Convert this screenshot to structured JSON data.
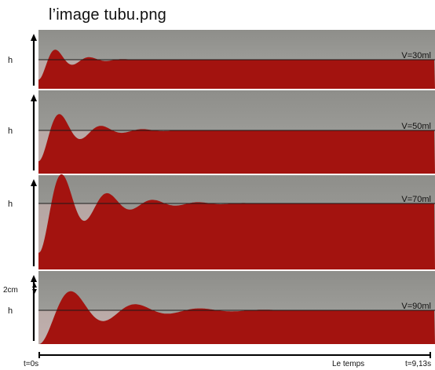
{
  "title": "l’image tubu.png",
  "axis": {
    "height_label": "h",
    "scale_label": "2cm",
    "time_start": "t=0s",
    "time_label": "Le temps",
    "time_end": "t=9,13s"
  },
  "panels": [
    {
      "volume_label": "V=30ml"
    },
    {
      "volume_label": "V=50ml"
    },
    {
      "volume_label": "V=70ml"
    },
    {
      "volume_label": "V=90ml"
    }
  ],
  "colors": {
    "liquid": "#a3130f",
    "air": "#9c9c98",
    "reference_line": "#1a1a1a"
  }
}
